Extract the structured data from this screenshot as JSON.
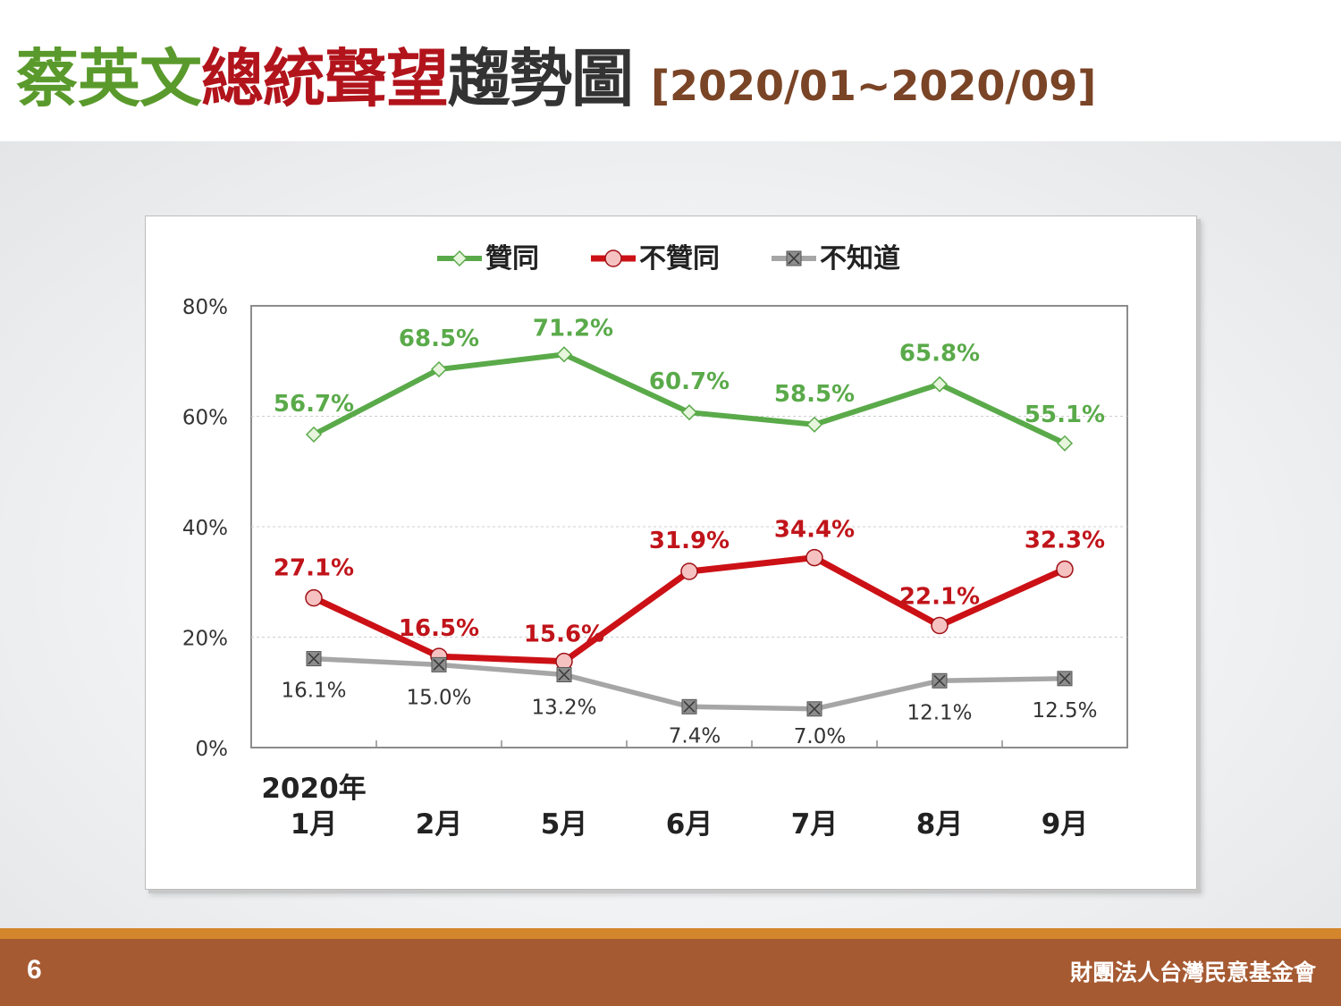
{
  "slide": {
    "title_part1": "蔡英文",
    "title_part2": "總統聲望",
    "title_part3": "趨勢圖",
    "title_range": "[2020/01~2020/09]",
    "page_number": "6",
    "organization": "財團法人台灣民意基金會"
  },
  "chart_data": {
    "type": "line",
    "x_year_label": "2020年",
    "categories": [
      "1月",
      "2月",
      "5月",
      "6月",
      "7月",
      "8月",
      "9月"
    ],
    "ylim": [
      0,
      80
    ],
    "yticks": [
      "0%",
      "20%",
      "40%",
      "60%",
      "80%"
    ],
    "grid": true,
    "legend_position": "top",
    "series": [
      {
        "name": "贊同",
        "color": "#5aaa4a",
        "marker": "diamond",
        "values": [
          56.7,
          68.5,
          71.2,
          60.7,
          58.5,
          65.8,
          55.1
        ],
        "labels": [
          "56.7%",
          "68.5%",
          "71.2%",
          "60.7%",
          "58.5%",
          "65.8%",
          "55.1%"
        ]
      },
      {
        "name": "不贊同",
        "color": "#cc1116",
        "marker": "circle",
        "values": [
          27.1,
          16.5,
          15.6,
          31.9,
          34.4,
          22.1,
          32.3
        ],
        "labels": [
          "27.1%",
          "16.5%",
          "15.6%",
          "31.9%",
          "34.4%",
          "22.1%",
          "32.3%"
        ]
      },
      {
        "name": "不知道",
        "color": "#a6a6a6",
        "marker": "square-x",
        "values": [
          16.1,
          15.0,
          13.2,
          7.4,
          7.0,
          12.1,
          12.5
        ],
        "labels": [
          "16.1%",
          "15.0%",
          "13.2%",
          "7.4%",
          "7.0%",
          "12.1%",
          "12.5%"
        ]
      }
    ]
  }
}
